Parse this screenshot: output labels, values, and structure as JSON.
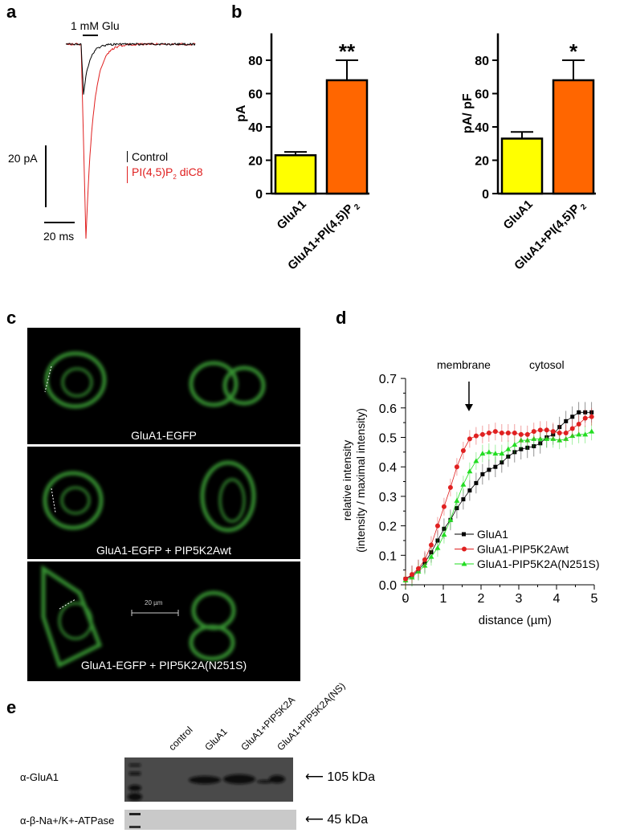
{
  "panels": {
    "a": "a",
    "b": "b",
    "c": "c",
    "d": "d",
    "e": "e"
  },
  "panel_a": {
    "stimulus": "1 mM Glu",
    "scale_y": "20 pA",
    "scale_x": "20 ms",
    "legend": [
      {
        "label": "Control",
        "color": "#000000"
      },
      {
        "label": "PI(4,5)P",
        "sub": "2",
        "suffix": " diC8",
        "color": "#e02020"
      }
    ]
  },
  "panel_c": {
    "images": [
      "GluA1-EGFP",
      "GluA1-EGFP + PIP5K2Awt",
      "GluA1-EGFP + PIP5K2A(N251S)"
    ],
    "scale_bar": "20 µm"
  },
  "panel_d": {
    "annotations": {
      "membrane": "membrane",
      "cytosol": "cytosol"
    }
  },
  "panel_e": {
    "lanes": [
      "control",
      "GluA1",
      "GluA1+PIP5K2A",
      "GluA1+PIP5K2A(NS)"
    ],
    "rows": [
      {
        "antibody": "α-GluA1",
        "size": "105 kDa"
      },
      {
        "antibody": "α-β-Na+/K+-ATPase",
        "size": "45 kDa"
      }
    ]
  },
  "chart_data": [
    {
      "type": "line",
      "panel": "a",
      "series": [
        {
          "name": "Control",
          "color": "#000000"
        },
        {
          "name": "PI(4,5)P2 diC8",
          "color": "#e02020"
        }
      ]
    },
    {
      "type": "bar",
      "panel": "b",
      "ylabel": "pA",
      "ylim": [
        0,
        100
      ],
      "yticks": [
        0,
        20,
        40,
        60,
        80
      ],
      "categories": [
        "GluA1",
        "GluA1+PI(4,5)P2"
      ],
      "values": [
        23,
        68
      ],
      "errors": [
        2,
        12
      ],
      "colors": [
        "#ffff00",
        "#ff6600"
      ],
      "significance": [
        "",
        "**"
      ]
    },
    {
      "type": "bar",
      "panel": "b",
      "ylabel": "pA/ pF",
      "ylim": [
        0,
        100
      ],
      "yticks": [
        0,
        20,
        40,
        60,
        80
      ],
      "categories": [
        "GluA1",
        "GluA1+PI(4,5)P2"
      ],
      "values": [
        33,
        68
      ],
      "errors": [
        4,
        12
      ],
      "colors": [
        "#ffff00",
        "#ff6600"
      ],
      "significance": [
        "",
        "*"
      ]
    },
    {
      "type": "line",
      "panel": "d",
      "xlabel": "distance (µm)",
      "ylabel": "relative intensity\n(intensity / maximal intensity)",
      "xlim": [
        0,
        5
      ],
      "ylim": [
        0,
        0.7
      ],
      "xticks": [
        0,
        1,
        2,
        3,
        4,
        5
      ],
      "yticks": [
        "0.0",
        "0.1",
        "0.2",
        "0.3",
        "0.4",
        "0.5",
        "0.6",
        "0.7"
      ],
      "legend": "bottom-right",
      "x": [
        0,
        0.17,
        0.34,
        0.51,
        0.68,
        0.85,
        1.02,
        1.19,
        1.36,
        1.53,
        1.7,
        1.87,
        2.04,
        2.21,
        2.38,
        2.55,
        2.72,
        2.89,
        3.06,
        3.23,
        3.4,
        3.57,
        3.74,
        3.91,
        4.08,
        4.25,
        4.42,
        4.59,
        4.76,
        4.93
      ],
      "series": [
        {
          "name": "GluA1",
          "color": "#000000",
          "marker": "square",
          "error": 0.035,
          "values": [
            0.02,
            0.03,
            0.05,
            0.075,
            0.11,
            0.15,
            0.19,
            0.22,
            0.26,
            0.29,
            0.32,
            0.345,
            0.375,
            0.39,
            0.4,
            0.415,
            0.435,
            0.45,
            0.46,
            0.465,
            0.47,
            0.48,
            0.5,
            0.51,
            0.535,
            0.555,
            0.57,
            0.585,
            0.585,
            0.585
          ]
        },
        {
          "name": "GluA1-PIP5K2Awt",
          "color": "#e02020",
          "marker": "circle",
          "error": 0.03,
          "values": [
            0.02,
            0.035,
            0.055,
            0.085,
            0.135,
            0.2,
            0.265,
            0.33,
            0.4,
            0.455,
            0.495,
            0.505,
            0.51,
            0.515,
            0.52,
            0.515,
            0.515,
            0.515,
            0.51,
            0.51,
            0.52,
            0.525,
            0.525,
            0.52,
            0.515,
            0.515,
            0.53,
            0.545,
            0.565,
            0.57
          ]
        },
        {
          "name": "GluA1-PIP5K2A(N251S)",
          "color": "#22dd22",
          "marker": "triangle",
          "error": 0.03,
          "values": [
            0.015,
            0.025,
            0.045,
            0.065,
            0.095,
            0.125,
            0.17,
            0.22,
            0.285,
            0.34,
            0.385,
            0.42,
            0.445,
            0.45,
            0.445,
            0.445,
            0.46,
            0.475,
            0.49,
            0.49,
            0.495,
            0.495,
            0.495,
            0.495,
            0.49,
            0.495,
            0.505,
            0.51,
            0.51,
            0.52
          ]
        }
      ]
    }
  ]
}
